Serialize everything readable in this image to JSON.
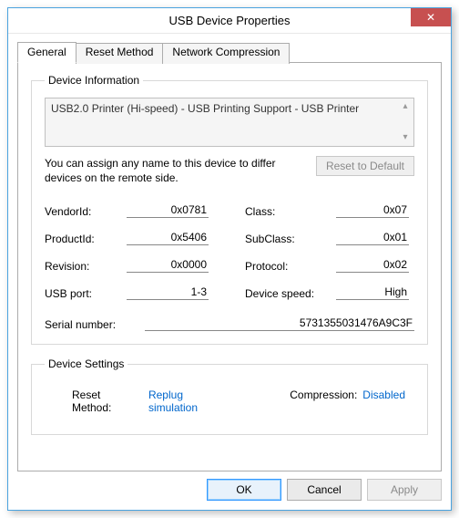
{
  "window": {
    "title": "USB Device Properties",
    "close_glyph": "✕"
  },
  "tabs": {
    "general": "General",
    "reset": "Reset Method",
    "network": "Network Compression"
  },
  "device_info": {
    "legend": "Device Information",
    "description": "USB2.0 Printer (Hi-speed) - USB Printing Support - USB Printer",
    "assign_text": "You can assign any name to this device to differ devices on the remote side.",
    "reset_default_btn": "Reset to Default",
    "fields": {
      "vendor_label": "VendorId:",
      "vendor_value": "0x0781",
      "product_label": "ProductId:",
      "product_value": "0x5406",
      "revision_label": "Revision:",
      "revision_value": "0x0000",
      "usbport_label": "USB port:",
      "usbport_value": "1-3",
      "class_label": "Class:",
      "class_value": "0x07",
      "subclass_label": "SubClass:",
      "subclass_value": "0x01",
      "protocol_label": "Protocol:",
      "protocol_value": "0x02",
      "speed_label": "Device speed:",
      "speed_value": "High",
      "serial_label": "Serial number:",
      "serial_value": "5731355031476A9C3F"
    }
  },
  "device_settings": {
    "legend": "Device Settings",
    "reset_label": "Reset Method:",
    "reset_value": "Replug simulation",
    "compression_label": "Compression:",
    "compression_value": "Disabled"
  },
  "buttons": {
    "ok": "OK",
    "cancel": "Cancel",
    "apply": "Apply"
  },
  "colors": {
    "window_border": "#4aa3df",
    "close_bg": "#c75050",
    "link": "#0066cc"
  }
}
